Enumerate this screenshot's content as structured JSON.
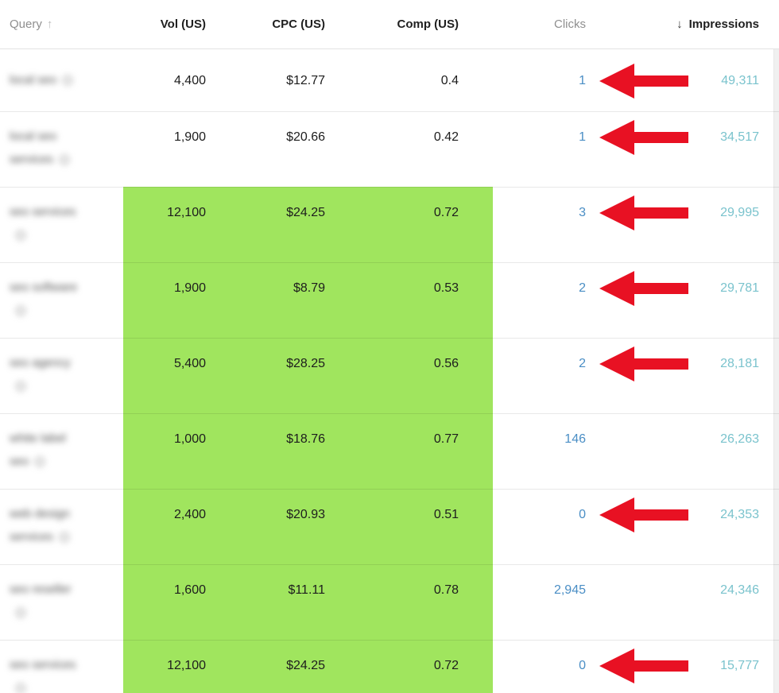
{
  "colors": {
    "highlight_green": "#a0e55e",
    "arrow_red": "#e81123",
    "clicks_blue": "#4a8ec5",
    "impressions_teal": "#7ac3cd"
  },
  "table": {
    "columns": [
      {
        "label": "Query",
        "muted": true,
        "sort_icon": "up"
      },
      {
        "label": "Vol (US)",
        "muted": false,
        "sort_icon": ""
      },
      {
        "label": "CPC (US)",
        "muted": false,
        "sort_icon": ""
      },
      {
        "label": "Comp (US)",
        "muted": false,
        "sort_icon": ""
      },
      {
        "label": "Clicks",
        "muted": true,
        "sort_icon": ""
      },
      {
        "label": "Impressions",
        "muted": false,
        "sort_icon": "down"
      }
    ],
    "sort_up_glyph": "↑",
    "sort_down_glyph": "↓",
    "rows": [
      {
        "query_line1": "local seo",
        "query_line2": "",
        "icon_line": 1,
        "vol": "4,400",
        "cpc": "$12.77",
        "comp": "0.4",
        "clicks": "1",
        "impressions": "49,311",
        "arrow": true,
        "green": false
      },
      {
        "query_line1": "local seo",
        "query_line2": "services",
        "icon_line": 2,
        "vol": "1,900",
        "cpc": "$20.66",
        "comp": "0.42",
        "clicks": "1",
        "impressions": "34,517",
        "arrow": true,
        "green": false
      },
      {
        "query_line1": "seo services",
        "query_line2": "",
        "icon_line": 2,
        "vol": "12,100",
        "cpc": "$24.25",
        "comp": "0.72",
        "clicks": "3",
        "impressions": "29,995",
        "arrow": true,
        "green": true
      },
      {
        "query_line1": "seo software",
        "query_line2": "",
        "icon_line": 2,
        "vol": "1,900",
        "cpc": "$8.79",
        "comp": "0.53",
        "clicks": "2",
        "impressions": "29,781",
        "arrow": true,
        "green": true
      },
      {
        "query_line1": "seo agency",
        "query_line2": "",
        "icon_line": 2,
        "vol": "5,400",
        "cpc": "$28.25",
        "comp": "0.56",
        "clicks": "2",
        "impressions": "28,181",
        "arrow": true,
        "green": true
      },
      {
        "query_line1": "white label",
        "query_line2": "seo",
        "icon_line": 2,
        "vol": "1,000",
        "cpc": "$18.76",
        "comp": "0.77",
        "clicks": "146",
        "impressions": "26,263",
        "arrow": false,
        "green": true
      },
      {
        "query_line1": "web design",
        "query_line2": "services",
        "icon_line": 2,
        "vol": "2,400",
        "cpc": "$20.93",
        "comp": "0.51",
        "clicks": "0",
        "impressions": "24,353",
        "arrow": true,
        "green": true
      },
      {
        "query_line1": "seo reseller",
        "query_line2": "",
        "icon_line": 2,
        "vol": "1,600",
        "cpc": "$11.11",
        "comp": "0.78",
        "clicks": "2,945",
        "impressions": "24,346",
        "arrow": false,
        "green": true
      },
      {
        "query_line1": "seo services",
        "query_line2": "",
        "icon_line": 2,
        "vol": "12,100",
        "cpc": "$24.25",
        "comp": "0.72",
        "clicks": "0",
        "impressions": "15,777",
        "arrow": true,
        "green": true
      }
    ]
  }
}
